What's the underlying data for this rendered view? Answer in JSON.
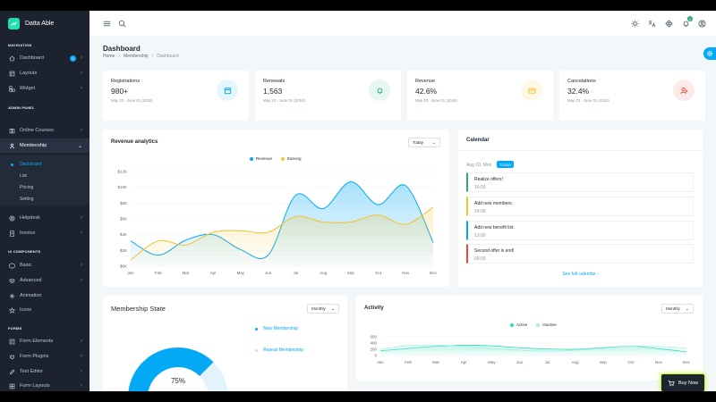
{
  "app": {
    "name": "Datta Able"
  },
  "sidebar": {
    "captions": {
      "navigation": "NAVIGATION",
      "admin": "ADMIN PANEL",
      "ui": "UI COMPONENTS",
      "forms": "FORMS"
    },
    "items": [
      {
        "label": "Dashboard",
        "icon": "home-icon",
        "badge": "5"
      },
      {
        "label": "Layouts",
        "icon": "layout-icon"
      },
      {
        "label": "Widget",
        "icon": "widget-icon"
      },
      {
        "label": "Online Courses",
        "icon": "book-icon"
      },
      {
        "label": "Membership",
        "icon": "user-icon"
      },
      {
        "label": "Helpdesk",
        "icon": "help-icon"
      },
      {
        "label": "Invoice",
        "icon": "invoice-icon"
      },
      {
        "label": "Basic",
        "icon": "box-icon"
      },
      {
        "label": "Advanced",
        "icon": "layers-icon"
      },
      {
        "label": "Animation",
        "icon": "sparkle-icon"
      },
      {
        "label": "Icons",
        "icon": "icons-icon"
      },
      {
        "label": "Form Elements",
        "icon": "form-icon"
      },
      {
        "label": "Form Plugins",
        "icon": "plugin-icon"
      },
      {
        "label": "Text Editor",
        "icon": "edit-icon"
      },
      {
        "label": "Form Layouts",
        "icon": "grid-icon"
      }
    ],
    "membership_sub": [
      "Dashboard",
      "List",
      "Pricing",
      "Setting"
    ]
  },
  "header": {
    "notification_count": "2"
  },
  "page": {
    "title": "Dashboard",
    "breadcrumb": [
      "Home",
      "Membership",
      "Dashboard"
    ]
  },
  "stats": [
    {
      "label": "Registrations",
      "value": "980+",
      "range": "May 23 - June 01 (2018)",
      "color": "#04a9f5",
      "bg": "#e6f6fe",
      "icon": "calendar-icon"
    },
    {
      "label": "Renewals",
      "value": "1,563",
      "range": "May 23 - June 01 (2018)",
      "color": "#2ca87f",
      "bg": "#e8f6f1",
      "icon": "bell-icon"
    },
    {
      "label": "Revenue",
      "value": "42.6%",
      "range": "May 23 - June 01 (2018)",
      "color": "#f4c22b",
      "bg": "#fef8e6",
      "icon": "card-icon"
    },
    {
      "label": "Cancelations",
      "value": "32.4%",
      "range": "May 23 - June 01 (2018)",
      "color": "#f44236",
      "bg": "#fdebea",
      "icon": "user-remove-icon"
    }
  ],
  "revenue": {
    "title": "Revenue analytics",
    "select": "Today",
    "legend": [
      "Revenue",
      "Earning"
    ]
  },
  "calendar": {
    "title": "Calendar",
    "date": "Aug 10, Mon",
    "badge": "TODAY",
    "events": [
      {
        "title": "Realize offers!",
        "time": "16:00",
        "color": "#2ca87f"
      },
      {
        "title": "Add new members.",
        "time": "14:00",
        "color": "#f4c22b"
      },
      {
        "title": "Add new benefit list.",
        "time": "13:00",
        "color": "#04a9f5"
      },
      {
        "title": "Second offer is end!",
        "time": "09:00",
        "color": "#f44236"
      }
    ],
    "link": "See full calendar"
  },
  "membership": {
    "title": "Membership State",
    "select": "Monthly",
    "legend": [
      "New Membership",
      "Repeat Membership"
    ],
    "percent_label": "75%"
  },
  "activity": {
    "title": "Activity",
    "select": "Monthly",
    "legend": [
      "Active",
      "Inactive"
    ]
  },
  "buy_now": "Buy Now",
  "chart_data": [
    {
      "type": "area",
      "title": "Revenue analytics",
      "categories": [
        "Jan",
        "Feb",
        "Mar",
        "Apr",
        "May",
        "Jun",
        "Jul",
        "Aug",
        "Sep",
        "Oct",
        "Nov",
        "Dec"
      ],
      "y_ticks": [
        "$0K",
        "$2K",
        "$4K",
        "$6K",
        "$8K",
        "$10K",
        "$12K"
      ],
      "ylim": [
        0,
        12
      ],
      "series": [
        {
          "name": "Revenue",
          "color": "#04a9f5",
          "values": [
            3.2,
            1.4,
            3.3,
            4.0,
            2.1,
            1.4,
            9.0,
            7.3,
            10.7,
            7.8,
            10.2,
            3.0
          ]
        },
        {
          "name": "Earning",
          "color": "#f4c22b",
          "values": [
            0.8,
            3.2,
            2.7,
            4.3,
            4.5,
            4.3,
            6.3,
            5.6,
            5.6,
            6.5,
            5.3,
            7.5
          ]
        }
      ]
    },
    {
      "type": "pie",
      "title": "Membership State",
      "categories": [
        "New Membership",
        "Repeat Membership"
      ],
      "values": [
        75,
        25
      ]
    },
    {
      "type": "area",
      "title": "Activity",
      "categories": [
        "Jan",
        "Feb",
        "Mar",
        "Apr",
        "May",
        "Jun",
        "Jul",
        "Aug",
        "Sep",
        "Oct",
        "Nov",
        "Dec"
      ],
      "y_ticks": [
        "0",
        "200",
        "400",
        "600"
      ],
      "ylim": [
        0,
        600
      ],
      "series": [
        {
          "name": "Active",
          "color": "#2ed8b6",
          "values": [
            150,
            230,
            300,
            330,
            310,
            250,
            210,
            200,
            250,
            300,
            220,
            120
          ]
        },
        {
          "name": "Inactive",
          "color": "#a3f0e0",
          "values": [
            200,
            320,
            340,
            290,
            220,
            170,
            140,
            170,
            230,
            300,
            290,
            240
          ]
        }
      ]
    }
  ]
}
